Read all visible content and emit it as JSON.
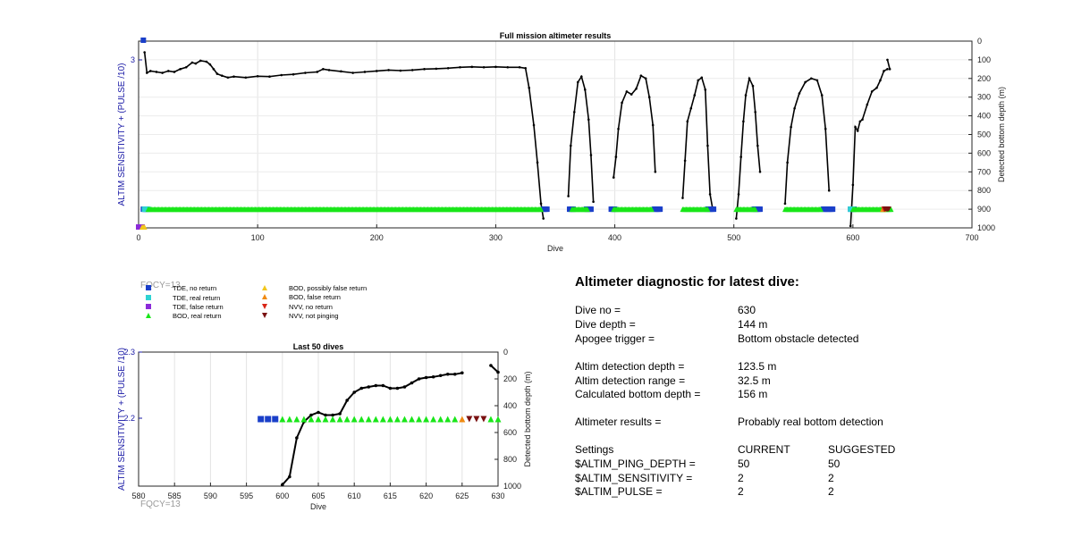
{
  "chart_data": [
    {
      "type": "scatter",
      "title": "Full mission altimeter results",
      "xlabel": "Dive",
      "ylabel_left": "ALTIM SENSITIVITY + (PULSE /10)",
      "ylabel_right": "Detected bottom depth (m)",
      "xlim": [
        0,
        700
      ],
      "xticks": [
        "0",
        "100",
        "200",
        "300",
        "400",
        "500",
        "600",
        "700"
      ],
      "left_ylim": [
        2,
        3.1
      ],
      "left_yticks": [
        "3"
      ],
      "right_ylim": [
        1000,
        0
      ],
      "right_yticks": [
        "0",
        "100",
        "200",
        "300",
        "400",
        "500",
        "600",
        "700",
        "800",
        "900",
        "1000"
      ],
      "grid": true,
      "series": [
        {
          "name": "Detected bottom depth",
          "color": "#000000",
          "segments": [
            [
              [
                5,
                60
              ],
              [
                7,
                170
              ],
              [
                10,
                160
              ],
              [
                15,
                165
              ],
              [
                20,
                170
              ],
              [
                25,
                160
              ],
              [
                30,
                165
              ],
              [
                35,
                150
              ],
              [
                40,
                140
              ],
              [
                45,
                115
              ],
              [
                48,
                120
              ],
              [
                52,
                105
              ],
              [
                57,
                110
              ],
              [
                60,
                125
              ],
              [
                63,
                150
              ],
              [
                66,
                175
              ],
              [
                70,
                185
              ],
              [
                75,
                195
              ],
              [
                80,
                190
              ],
              [
                90,
                195
              ],
              [
                100,
                188
              ],
              [
                110,
                190
              ],
              [
                120,
                182
              ],
              [
                130,
                178
              ],
              [
                140,
                170
              ],
              [
                150,
                165
              ],
              [
                155,
                150
              ],
              [
                160,
                155
              ],
              [
                170,
                162
              ],
              [
                180,
                170
              ],
              [
                190,
                165
              ],
              [
                200,
                160
              ],
              [
                210,
                155
              ],
              [
                220,
                158
              ],
              [
                230,
                155
              ],
              [
                240,
                150
              ],
              [
                250,
                148
              ],
              [
                260,
                145
              ],
              [
                270,
                140
              ],
              [
                280,
                138
              ],
              [
                290,
                140
              ],
              [
                300,
                138
              ],
              [
                310,
                140
              ],
              [
                320,
                140
              ],
              [
                325,
                145
              ],
              [
                328,
                250
              ],
              [
                332,
                450
              ],
              [
                335,
                650
              ],
              [
                338,
                870
              ],
              [
                340,
                950
              ]
            ],
            [
              [
                361,
                830
              ],
              [
                363,
                560
              ],
              [
                366,
                380
              ],
              [
                369,
                220
              ],
              [
                372,
                190
              ],
              [
                375,
                260
              ],
              [
                378,
                420
              ],
              [
                380,
                610
              ],
              [
                382,
                860
              ]
            ],
            [
              [
                399,
                730
              ],
              [
                401,
                620
              ],
              [
                403,
                470
              ],
              [
                406,
                330
              ],
              [
                410,
                270
              ],
              [
                414,
                285
              ],
              [
                418,
                255
              ],
              [
                422,
                185
              ],
              [
                426,
                200
              ],
              [
                429,
                300
              ],
              [
                432,
                450
              ],
              [
                434,
                700
              ]
            ],
            [
              [
                457,
                840
              ],
              [
                459,
                640
              ],
              [
                461,
                430
              ],
              [
                464,
                360
              ],
              [
                467,
                290
              ],
              [
                470,
                210
              ],
              [
                473,
                195
              ],
              [
                476,
                260
              ],
              [
                478,
                560
              ],
              [
                480,
                820
              ],
              [
                482,
                890
              ]
            ],
            [
              [
                502,
                950
              ],
              [
                504,
                820
              ],
              [
                506,
                620
              ],
              [
                508,
                430
              ],
              [
                510,
                290
              ],
              [
                513,
                200
              ],
              [
                516,
                240
              ],
              [
                518,
                380
              ],
              [
                520,
                560
              ],
              [
                522,
                700
              ]
            ],
            [
              [
                543,
                870
              ],
              [
                545,
                650
              ],
              [
                548,
                460
              ],
              [
                551,
                360
              ],
              [
                555,
                280
              ],
              [
                560,
                220
              ],
              [
                565,
                200
              ],
              [
                570,
                210
              ],
              [
                574,
                290
              ],
              [
                577,
                470
              ],
              [
                580,
                800
              ]
            ],
            [
              [
                598,
                990
              ],
              [
                600,
                770
              ],
              [
                602,
                460
              ],
              [
                604,
                480
              ],
              [
                606,
                430
              ],
              [
                608,
                420
              ],
              [
                612,
                340
              ],
              [
                616,
                270
              ],
              [
                620,
                250
              ],
              [
                623,
                210
              ],
              [
                626,
                160
              ],
              [
                629,
                150
              ]
            ],
            [
              [
                629,
                100
              ],
              [
                631,
                150
              ]
            ]
          ]
        }
      ],
      "status_markers": [
        {
          "name": "TDE, no return",
          "shape": "square",
          "color": "#1a3fc9",
          "x_ranges": [
            [
              4,
              7
            ],
            [
              340,
              343
            ],
            [
              362,
              365
            ],
            [
              376,
              380
            ],
            [
              397,
              400
            ],
            [
              433,
              438
            ],
            [
              478,
              483
            ],
            [
              517,
              522
            ],
            [
              575,
              583
            ],
            [
              598,
              601
            ]
          ]
        },
        {
          "name": "TDE, real return",
          "shape": "square",
          "color": "#2ed3d3",
          "x_ranges": [
            [
              5,
              8
            ],
            [
              598,
              600
            ]
          ]
        },
        {
          "name": "TDE, false return",
          "shape": "square",
          "color": "#8b2bd9",
          "x_ranges": [
            [
              0,
              3
            ]
          ]
        },
        {
          "name": "BOD, real return",
          "shape": "triangle-up",
          "color": "#19e619",
          "x_ranges": [
            [
              8,
              338
            ],
            [
              364,
              377
            ],
            [
              399,
              431
            ],
            [
              457,
              478
            ],
            [
              502,
              518
            ],
            [
              543,
              573
            ],
            [
              600,
              632
            ]
          ]
        },
        {
          "name": "BOD, possibly false return",
          "shape": "triangle-up",
          "color": "#f2c71d",
          "x_ranges": [
            [
              3,
              5
            ]
          ]
        },
        {
          "name": "BOD, false return",
          "shape": "triangle-up",
          "color": "#f08a11",
          "x_ranges": [
            [
              625,
              626
            ]
          ]
        },
        {
          "name": "NVV, no return",
          "shape": "triangle-down",
          "color": "#d92516",
          "x_ranges": [
            [
              626,
              627
            ]
          ]
        },
        {
          "name": "NVV, not pinging",
          "shape": "triangle-down",
          "color": "#7a1010",
          "x_ranges": [
            [
              627,
              630
            ]
          ]
        }
      ]
    },
    {
      "type": "scatter",
      "title": "Last 50 dives",
      "xlabel": "Dive",
      "ylabel_left": "ALTIM SENSITIVITY + (PULSE /10)",
      "ylabel_right": "Detected bottom depth (m)",
      "xlim": [
        580,
        630
      ],
      "xticks": [
        "580",
        "585",
        "590",
        "595",
        "600",
        "605",
        "610",
        "615",
        "620",
        "625",
        "630"
      ],
      "left_ylim": [
        2.1,
        2.3
      ],
      "left_yticks": [
        "2.3",
        "2.2"
      ],
      "right_ylim": [
        1000,
        0
      ],
      "right_yticks": [
        "0",
        "200",
        "400",
        "600",
        "800",
        "1000"
      ],
      "grid": true,
      "series": [
        {
          "name": "Detected bottom depth",
          "color": "#000000",
          "segments": [
            [
              [
                600,
                990
              ],
              [
                601,
                930
              ],
              [
                602,
                640
              ],
              [
                603,
                520
              ],
              [
                604,
                470
              ],
              [
                605,
                450
              ],
              [
                606,
                470
              ],
              [
                607,
                470
              ],
              [
                608,
                460
              ],
              [
                609,
                360
              ],
              [
                610,
                300
              ],
              [
                611,
                270
              ],
              [
                612,
                260
              ],
              [
                613,
                250
              ],
              [
                614,
                250
              ],
              [
                615,
                270
              ],
              [
                616,
                270
              ],
              [
                617,
                260
              ],
              [
                618,
                230
              ],
              [
                619,
                200
              ],
              [
                620,
                190
              ],
              [
                621,
                185
              ],
              [
                622,
                175
              ],
              [
                623,
                165
              ],
              [
                624,
                165
              ],
              [
                625,
                155
              ]
            ],
            [
              [
                629,
                100
              ],
              [
                630,
                150
              ]
            ]
          ]
        }
      ],
      "markers": [
        {
          "name": "TDE, no return",
          "shape": "square",
          "color": "#1a3fc9",
          "y": 2.2,
          "x": [
            597,
            598,
            599
          ]
        },
        {
          "name": "BOD, real return",
          "shape": "triangle-up",
          "color": "#19e619",
          "y": 2.2,
          "x": [
            600,
            601,
            602,
            603,
            604,
            605,
            606,
            607,
            608,
            609,
            610,
            611,
            612,
            613,
            614,
            615,
            616,
            617,
            618,
            619,
            620,
            621,
            622,
            623,
            624,
            630
          ]
        },
        {
          "name": "BOD, false return",
          "shape": "triangle-up",
          "color": "#f08a11",
          "y": 2.2,
          "x": [
            625
          ]
        },
        {
          "name": "NVV, not pinging",
          "shape": "triangle-down",
          "color": "#7a1010",
          "y": 2.2,
          "x": [
            626,
            627,
            628
          ]
        },
        {
          "name": "BOD, real return",
          "shape": "triangle-up",
          "color": "#19e619",
          "y": 2.2,
          "x": [
            629
          ]
        }
      ]
    }
  ],
  "fqcy_top": "FQCY=13",
  "fqcy_bottom": "FQCY=13",
  "legend": [
    {
      "label": "TDE, no return",
      "shape": "square",
      "color": "#1a3fc9"
    },
    {
      "label": "TDE, real return",
      "shape": "square",
      "color": "#2ed3d3"
    },
    {
      "label": "TDE, false return",
      "shape": "square",
      "color": "#8b2bd9"
    },
    {
      "label": "BOD, real return",
      "shape": "triangle-up",
      "color": "#19e619"
    },
    {
      "label": "BOD, possibly false return",
      "shape": "triangle-up",
      "color": "#f2c71d"
    },
    {
      "label": "BOD, false return",
      "shape": "triangle-up",
      "color": "#f08a11"
    },
    {
      "label": "NVV, no return",
      "shape": "triangle-down",
      "color": "#d92516"
    },
    {
      "label": "NVV, not pinging",
      "shape": "triangle-down",
      "color": "#7a1010"
    }
  ],
  "diagnostic": {
    "title": "Altimeter diagnostic for latest dive:",
    "dive_no_label": "Dive no =",
    "dive_no": "630",
    "dive_depth_label": "Dive depth =",
    "dive_depth": "144 m",
    "apogee_label": "Apogee trigger =",
    "apogee": "Bottom obstacle detected",
    "altim_det_depth_label": "Altim detection depth =",
    "altim_det_depth": "123.5 m",
    "altim_det_range_label": "Altim detection range =",
    "altim_det_range": "32.5 m",
    "calc_bottom_label": "Calculated bottom depth =",
    "calc_bottom": "156 m",
    "results_label": "Altimeter results =",
    "results": "Probably real bottom detection",
    "settings_label": "Settings",
    "current_header": "CURRENT",
    "suggested_header": "SUGGESTED",
    "settings": [
      {
        "name": "$ALTIM_PING_DEPTH =",
        "current": "50",
        "suggested": "50"
      },
      {
        "name": "$ALTIM_SENSITIVITY =",
        "current": "2",
        "suggested": "2"
      },
      {
        "name": "$ALTIM_PULSE =",
        "current": "2",
        "suggested": "2"
      }
    ]
  }
}
